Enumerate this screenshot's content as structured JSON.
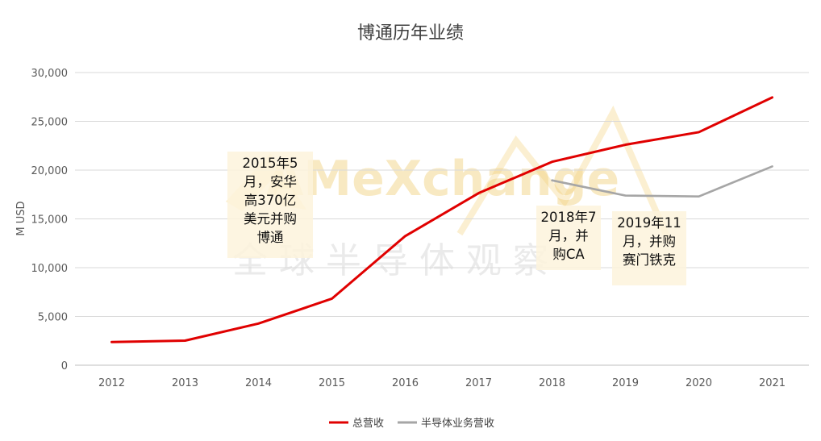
{
  "chart_data": {
    "type": "line",
    "title": "博通历年业绩",
    "ylabel": "M USD",
    "xlabel": "",
    "categories": [
      "2012",
      "2013",
      "2014",
      "2015",
      "2016",
      "2017",
      "2018",
      "2019",
      "2020",
      "2021"
    ],
    "ylim": [
      0,
      30000
    ],
    "yticks": [
      0,
      5000,
      10000,
      15000,
      20000,
      25000,
      30000
    ],
    "ytick_labels": [
      "0",
      "5,000",
      "10,000",
      "15,000",
      "20,000",
      "25,000",
      "30,000"
    ],
    "grid": true,
    "legend_position": "bottom",
    "series": [
      {
        "name": "总营收",
        "color": "#e00000",
        "values": [
          2380,
          2520,
          4270,
          6820,
          13240,
          17640,
          20850,
          22600,
          23890,
          27450
        ]
      },
      {
        "name": "半导体业务营收",
        "color": "#a6a6a6",
        "values": [
          null,
          null,
          null,
          null,
          null,
          null,
          18950,
          17390,
          17300,
          20380
        ]
      }
    ],
    "annotations": [
      {
        "lines": [
          "2015年5",
          "月，安华",
          "高370亿",
          "美元并购",
          "博通"
        ]
      },
      {
        "lines": [
          "2018年7",
          "月，并",
          "购CA"
        ]
      },
      {
        "lines": [
          "2019年11",
          "月，并购",
          "赛门铁克"
        ]
      }
    ]
  },
  "watermark": {
    "text": "AMeXchange",
    "subtext": "全 球 半 导 体 观 察"
  }
}
